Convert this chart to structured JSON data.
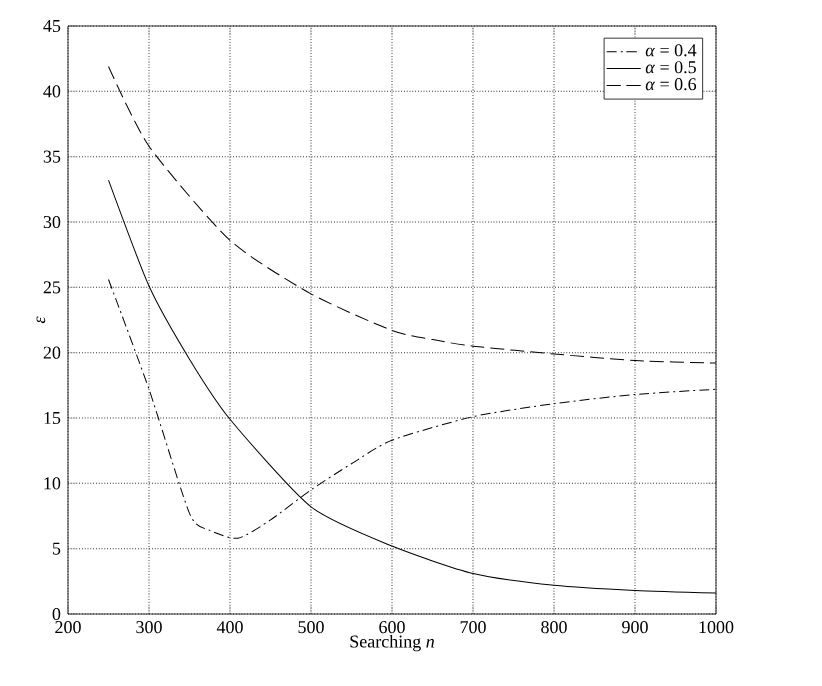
{
  "chart_data": {
    "type": "line",
    "xlabel": "Searching *n*",
    "ylabel": "*ε*",
    "xlim": [
      200,
      1000
    ],
    "ylim": [
      0,
      45
    ],
    "xticks": [
      200,
      300,
      400,
      500,
      600,
      700,
      800,
      900,
      1000
    ],
    "yticks": [
      0,
      5,
      10,
      15,
      20,
      25,
      30,
      35,
      40,
      45
    ],
    "grid": true,
    "legend": "top right",
    "series": [
      {
        "name": "*α* = 0.4",
        "color": "#000000",
        "line_style": "dashdot",
        "x": [
          250,
          300,
          350,
          375,
          410,
          450,
          500,
          550,
          600,
          700,
          800,
          900,
          1000
        ],
        "values": [
          25.6,
          17.2,
          7.7,
          6.4,
          5.8,
          7.2,
          9.5,
          11.5,
          13.3,
          15.1,
          16.1,
          16.8,
          17.2
        ]
      },
      {
        "name": "*α* = 0.5",
        "color": "#000000",
        "line_style": "solid",
        "x": [
          250,
          300,
          350,
          400,
          500,
          600,
          700,
          800,
          900,
          1000
        ],
        "values": [
          33.2,
          25.1,
          19.5,
          14.9,
          8.2,
          5.2,
          3.1,
          2.2,
          1.8,
          1.6
        ]
      },
      {
        "name": "*α* = 0.6",
        "color": "#000000",
        "line_style": "dashed",
        "x": [
          250,
          300,
          400,
          500,
          600,
          650,
          700,
          800,
          900,
          1000
        ],
        "values": [
          41.9,
          35.8,
          28.6,
          24.5,
          21.7,
          21.0,
          20.5,
          19.9,
          19.4,
          19.2
        ]
      }
    ]
  }
}
